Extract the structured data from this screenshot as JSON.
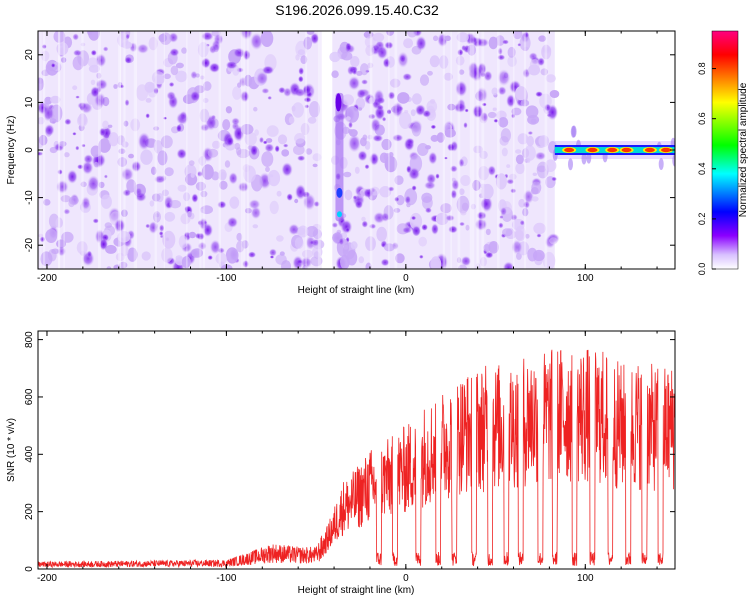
{
  "title": "S196.2026.099.15.40.C32",
  "chart_data": [
    {
      "type": "heatmap",
      "name": "spectrogram",
      "xlabel": "Height of straight line (km)",
      "ylabel": "Frequency (Hz)",
      "xlim": [
        -205,
        150
      ],
      "ylim": [
        -25,
        25
      ],
      "xticks": [
        -200,
        -100,
        0,
        100
      ],
      "yticks": [
        -20,
        -10,
        0,
        10,
        20
      ],
      "xtick_labels": [
        "-200",
        "-100",
        "0",
        "100"
      ],
      "ytick_labels": [
        "-20",
        "-10",
        "0",
        "10",
        "20"
      ],
      "noise_region_km": [
        -205,
        83
      ],
      "gap_km": [
        -47,
        -41
      ],
      "strong_feature": {
        "x_km": -37,
        "freq_range_hz": [
          -15,
          12
        ]
      },
      "signal_line": {
        "freq_hz": 0,
        "x_km_range": [
          83,
          150
        ],
        "bright_spots_km": [
          91,
          104,
          115,
          123,
          136,
          145
        ]
      },
      "colorbar": {
        "label": "Normalized spectral amplitude",
        "range": [
          0.0,
          0.95
        ],
        "ticks": [
          0.0,
          0.2,
          0.4,
          0.6,
          0.8
        ],
        "tick_labels": [
          "0.0",
          "0.2",
          "0.4",
          "0.6",
          "0.8"
        ],
        "colors": [
          "#ffffff",
          "#8b00ff",
          "#0000ff",
          "#00ffff",
          "#00ff00",
          "#ffff00",
          "#ff8000",
          "#ff0000",
          "#ff0080"
        ]
      }
    },
    {
      "type": "line",
      "name": "snr",
      "xlabel": "Height of straight line (km)",
      "ylabel": "SNR (10 * v/v)",
      "xlim": [
        -205,
        150
      ],
      "ylim": [
        0,
        830
      ],
      "xticks": [
        -200,
        -100,
        0,
        100
      ],
      "yticks": [
        0,
        200,
        400,
        600,
        800
      ],
      "xtick_labels": [
        "-200",
        "-100",
        "0",
        "100"
      ],
      "ytick_labels": [
        "0",
        "200",
        "400",
        "600",
        "800"
      ],
      "color": "#ee2222",
      "envelope": [
        {
          "x": -205,
          "y": 20
        },
        {
          "x": -100,
          "y": 25
        },
        {
          "x": -85,
          "y": 50
        },
        {
          "x": -75,
          "y": 70
        },
        {
          "x": -60,
          "y": 60
        },
        {
          "x": -50,
          "y": 60
        },
        {
          "x": -45,
          "y": 110
        },
        {
          "x": -40,
          "y": 180
        },
        {
          "x": -35,
          "y": 260
        },
        {
          "x": -30,
          "y": 280
        },
        {
          "x": -20,
          "y": 350
        },
        {
          "x": -10,
          "y": 380
        },
        {
          "x": 0,
          "y": 420
        },
        {
          "x": 10,
          "y": 480
        },
        {
          "x": 20,
          "y": 520
        },
        {
          "x": 30,
          "y": 570
        },
        {
          "x": 40,
          "y": 590
        },
        {
          "x": 50,
          "y": 600
        },
        {
          "x": 60,
          "y": 610
        },
        {
          "x": 70,
          "y": 640
        },
        {
          "x": 80,
          "y": 640
        },
        {
          "x": 90,
          "y": 660
        },
        {
          "x": 100,
          "y": 650
        },
        {
          "x": 110,
          "y": 640
        },
        {
          "x": 120,
          "y": 600
        },
        {
          "x": 130,
          "y": 610
        },
        {
          "x": 140,
          "y": 590
        },
        {
          "x": 150,
          "y": 600
        }
      ],
      "dropouts_km": [
        -15,
        -6,
        7,
        18,
        27,
        38,
        47,
        56,
        64,
        75,
        83,
        94,
        104,
        114,
        124,
        133,
        142
      ]
    }
  ]
}
